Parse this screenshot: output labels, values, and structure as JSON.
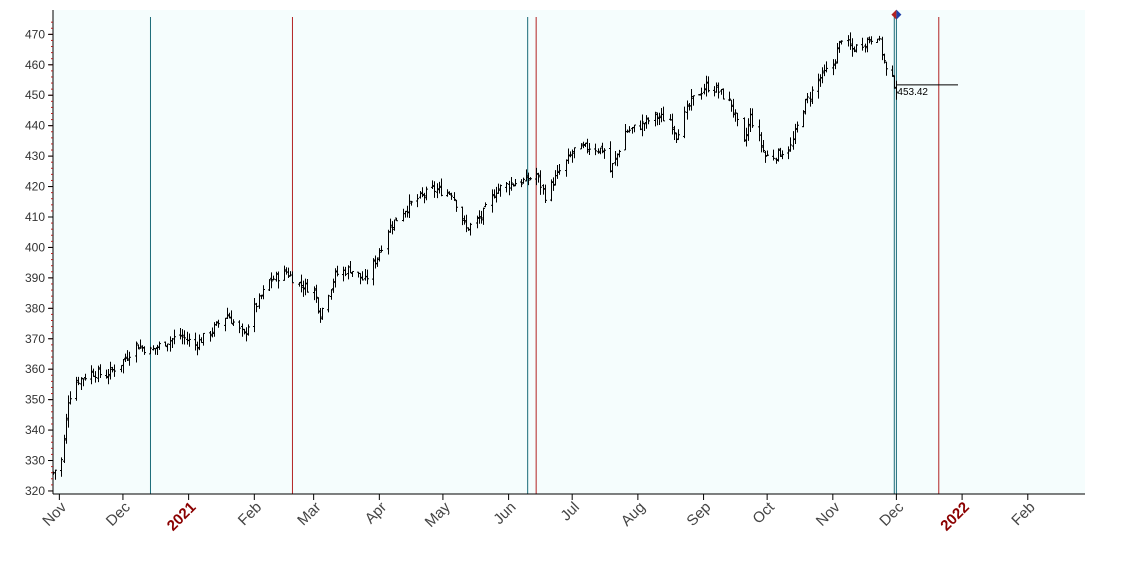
{
  "chart_data": {
    "type": "ohlc",
    "title": "",
    "xlabel": "",
    "ylabel": "",
    "ylim": [
      319,
      478
    ],
    "xlim": [
      "2020-10-29",
      "2022-02-28"
    ],
    "y_ticks": [
      320,
      330,
      340,
      350,
      360,
      370,
      380,
      390,
      400,
      410,
      420,
      430,
      440,
      450,
      460,
      470
    ],
    "grid": false,
    "plot_background": "#f5fdfd",
    "bar_color": "#000000",
    "x_tick_labels": [
      {
        "label": "Nov",
        "date": "2020-11-01",
        "kind": "month"
      },
      {
        "label": "Dec",
        "date": "2020-12-01",
        "kind": "month"
      },
      {
        "label": "2021",
        "date": "2021-01-01",
        "kind": "year"
      },
      {
        "label": "Feb",
        "date": "2021-02-01",
        "kind": "month"
      },
      {
        "label": "Mar",
        "date": "2021-03-01",
        "kind": "month"
      },
      {
        "label": "Apr",
        "date": "2021-04-01",
        "kind": "month"
      },
      {
        "label": "May",
        "date": "2021-05-01",
        "kind": "month"
      },
      {
        "label": "Jun",
        "date": "2021-06-01",
        "kind": "month"
      },
      {
        "label": "Jul",
        "date": "2021-07-01",
        "kind": "month"
      },
      {
        "label": "Aug",
        "date": "2021-08-01",
        "kind": "month"
      },
      {
        "label": "Sep",
        "date": "2021-09-01",
        "kind": "month"
      },
      {
        "label": "Oct",
        "date": "2021-10-01",
        "kind": "month"
      },
      {
        "label": "Nov",
        "date": "2021-11-01",
        "kind": "month"
      },
      {
        "label": "Dec",
        "date": "2021-12-01",
        "kind": "month"
      },
      {
        "label": "2022",
        "date": "2022-01-01",
        "kind": "year"
      },
      {
        "label": "Feb",
        "date": "2022-02-01",
        "kind": "month"
      }
    ],
    "vertical_lines": [
      {
        "date": "2020-12-14",
        "color": "#1a6b78"
      },
      {
        "date": "2021-02-19",
        "color": "#b22222"
      },
      {
        "date": "2021-06-10",
        "color": "#1a6b78"
      },
      {
        "date": "2021-06-14",
        "color": "#b22222"
      },
      {
        "date": "2021-11-30",
        "color": "#1a6b78"
      },
      {
        "date": "2021-12-01",
        "color": "#1a6b78"
      },
      {
        "date": "2021-12-21",
        "color": "#b22222"
      }
    ],
    "last_value": {
      "label": "453.42",
      "value": 453.42,
      "date": "2021-12-01"
    },
    "marker": {
      "date": "2021-12-01",
      "value": 476.5,
      "color_left": "#b22222",
      "color_right": "#1f3fa8"
    },
    "anchors": [
      [
        "2020-10-29",
        326
      ],
      [
        "2020-11-02",
        330
      ],
      [
        "2020-11-05",
        350
      ],
      [
        "2020-11-09",
        356
      ],
      [
        "2020-11-16",
        359
      ],
      [
        "2020-11-23",
        358
      ],
      [
        "2020-11-30",
        362
      ],
      [
        "2020-12-07",
        368
      ],
      [
        "2020-12-14",
        366
      ],
      [
        "2020-12-21",
        369
      ],
      [
        "2020-12-28",
        371
      ],
      [
        "2021-01-04",
        368
      ],
      [
        "2021-01-11",
        372
      ],
      [
        "2021-01-19",
        378
      ],
      [
        "2021-01-27",
        371
      ],
      [
        "2021-02-01",
        380
      ],
      [
        "2021-02-08",
        389
      ],
      [
        "2021-02-16",
        392
      ],
      [
        "2021-02-22",
        388
      ],
      [
        "2021-03-01",
        386
      ],
      [
        "2021-03-04",
        378
      ],
      [
        "2021-03-11",
        391
      ],
      [
        "2021-03-18",
        393
      ],
      [
        "2021-03-25",
        389
      ],
      [
        "2021-03-31",
        397
      ],
      [
        "2021-04-05",
        406
      ],
      [
        "2021-04-12",
        412
      ],
      [
        "2021-04-19",
        416
      ],
      [
        "2021-04-26",
        419
      ],
      [
        "2021-05-05",
        418
      ],
      [
        "2021-05-12",
        406
      ],
      [
        "2021-05-19",
        410
      ],
      [
        "2021-05-26",
        419
      ],
      [
        "2021-06-02",
        421
      ],
      [
        "2021-06-09",
        422
      ],
      [
        "2021-06-14",
        424
      ],
      [
        "2021-06-18",
        417
      ],
      [
        "2021-06-25",
        425
      ],
      [
        "2021-07-02",
        432
      ],
      [
        "2021-07-09",
        433
      ],
      [
        "2021-07-16",
        432
      ],
      [
        "2021-07-19",
        425
      ],
      [
        "2021-07-26",
        438
      ],
      [
        "2021-08-02",
        440
      ],
      [
        "2021-08-09",
        443
      ],
      [
        "2021-08-16",
        442
      ],
      [
        "2021-08-19",
        437
      ],
      [
        "2021-08-26",
        448
      ],
      [
        "2021-09-02",
        453
      ],
      [
        "2021-09-07",
        452
      ],
      [
        "2021-09-14",
        447
      ],
      [
        "2021-09-20",
        434
      ],
      [
        "2021-09-23",
        443
      ],
      [
        "2021-09-30",
        430
      ],
      [
        "2021-10-04",
        430
      ],
      [
        "2021-10-12",
        433
      ],
      [
        "2021-10-18",
        446
      ],
      [
        "2021-10-25",
        455
      ],
      [
        "2021-11-01",
        460
      ],
      [
        "2021-11-05",
        469
      ],
      [
        "2021-11-10",
        465
      ],
      [
        "2021-11-17",
        468
      ],
      [
        "2021-11-22",
        470
      ],
      [
        "2021-11-26",
        458
      ],
      [
        "2021-11-30",
        454
      ],
      [
        "2021-12-01",
        452
      ]
    ]
  }
}
